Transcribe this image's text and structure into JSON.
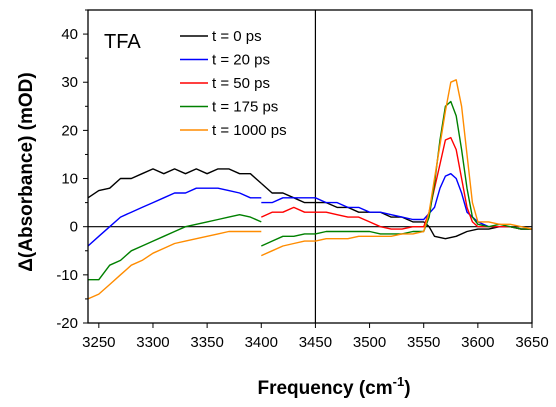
{
  "chart_data": {
    "type": "line",
    "panel_label": "TFA",
    "xlabel_main": "Frequency (cm",
    "xlabel_sup": "-1",
    "xlabel_end": ")",
    "ylabel": "Δ(Absorbance) (mOD)",
    "xlim": [
      3240,
      3650
    ],
    "ylim": [
      -20,
      45
    ],
    "xticks": [
      3250,
      3300,
      3350,
      3400,
      3450,
      3500,
      3550,
      3600,
      3650
    ],
    "yticks": [
      -20,
      -10,
      0,
      10,
      20,
      30,
      40
    ],
    "reference_lines": {
      "x": 3450,
      "y": 0
    },
    "legend_position": "top-center",
    "series": [
      {
        "name": "t = 0 ps",
        "color": "#000000",
        "segments": [
          {
            "x": [
              3240,
              3250,
              3260,
              3270,
              3280,
              3290,
              3300,
              3310,
              3320,
              3330,
              3340,
              3350,
              3360,
              3370,
              3380,
              3390,
              3400
            ],
            "y": [
              6,
              7.5,
              8,
              10,
              10,
              11,
              12,
              11,
              12,
              11,
              12,
              11,
              12,
              12,
              11,
              11,
              9
            ]
          },
          {
            "x": [
              3400,
              3410,
              3420,
              3430,
              3440,
              3450,
              3460,
              3470,
              3480,
              3490,
              3500,
              3510,
              3520,
              3530,
              3540,
              3550,
              3555,
              3560,
              3570,
              3580,
              3590,
              3600,
              3610,
              3620,
              3630,
              3640,
              3650
            ],
            "y": [
              9,
              7,
              7,
              6,
              5,
              5,
              5,
              4,
              4,
              3,
              3,
              3,
              2,
              2,
              1,
              1,
              0,
              -2,
              -2.5,
              -2,
              -1,
              -0.5,
              -0.5,
              0,
              0,
              -0.5,
              -0.5
            ]
          }
        ]
      },
      {
        "name": "t = 20 ps",
        "color": "#0000ff",
        "segments": [
          {
            "x": [
              3240,
              3250,
              3260,
              3270,
              3280,
              3290,
              3300,
              3310,
              3320,
              3330,
              3340,
              3350,
              3360,
              3370,
              3380,
              3390,
              3400
            ],
            "y": [
              -4,
              -2,
              0,
              2,
              3,
              4,
              5,
              6,
              7,
              7,
              8,
              8,
              8,
              7.5,
              7,
              6,
              6
            ]
          },
          {
            "x": [
              3400,
              3410,
              3420,
              3430,
              3440,
              3450,
              3460,
              3470,
              3480,
              3490,
              3500,
              3510,
              3520,
              3530,
              3540,
              3550,
              3560,
              3565,
              3570,
              3575,
              3580,
              3585,
              3590,
              3600,
              3610,
              3620,
              3630,
              3640,
              3650
            ],
            "y": [
              5,
              5,
              6,
              6,
              6,
              6,
              5,
              5,
              4,
              4,
              3,
              3,
              2.5,
              2,
              1.5,
              1.5,
              4,
              8,
              10.5,
              11,
              10,
              7,
              3,
              1,
              0,
              0,
              0,
              -0.5,
              -0.5
            ]
          }
        ]
      },
      {
        "name": "t = 50 ps",
        "color": "#ff0000",
        "segments": [
          {
            "x": [
              3400,
              3410,
              3420,
              3430,
              3440,
              3450,
              3460,
              3470,
              3480,
              3490,
              3500,
              3510,
              3520,
              3530,
              3540,
              3550,
              3555,
              3560,
              3565,
              3570,
              3575,
              3580,
              3585,
              3590,
              3595,
              3600,
              3610,
              3620,
              3630,
              3640,
              3650
            ],
            "y": [
              2,
              3,
              3,
              4,
              3,
              3,
              3,
              2.5,
              2,
              2,
              1,
              0,
              -0.5,
              -0.5,
              0,
              0,
              3,
              8,
              13,
              18,
              18.5,
              16,
              10,
              4,
              1,
              0,
              0,
              0,
              0,
              -0.5,
              -0.5
            ]
          }
        ]
      },
      {
        "name": "t = 175 ps",
        "color": "#008000",
        "segments": [
          {
            "x": [
              3240,
              3250,
              3260,
              3270,
              3280,
              3290,
              3300,
              3310,
              3320,
              3330,
              3340,
              3350,
              3360,
              3370,
              3380,
              3390,
              3400
            ],
            "y": [
              -11,
              -11,
              -8,
              -7,
              -5,
              -4,
              -3,
              -2,
              -1,
              0,
              0.5,
              1,
              1.5,
              2,
              2.5,
              2,
              1
            ]
          },
          {
            "x": [
              3400,
              3410,
              3420,
              3430,
              3440,
              3450,
              3460,
              3470,
              3480,
              3490,
              3500,
              3510,
              3520,
              3530,
              3540,
              3550,
              3555,
              3560,
              3565,
              3570,
              3575,
              3580,
              3585,
              3590,
              3595,
              3600,
              3610,
              3620,
              3630,
              3640,
              3650
            ],
            "y": [
              -4,
              -3,
              -2,
              -2,
              -1.5,
              -1.5,
              -1,
              -1,
              -1,
              -1,
              -1,
              -1.5,
              -1.5,
              -1.5,
              -1,
              -1,
              2,
              9,
              18,
              25,
              26,
              23,
              16,
              8,
              2,
              0.5,
              0,
              0.5,
              0,
              -0.5,
              -0.5
            ]
          }
        ]
      },
      {
        "name": "t = 1000 ps",
        "color": "#ff8c00",
        "segments": [
          {
            "x": [
              3240,
              3250,
              3260,
              3270,
              3280,
              3290,
              3300,
              3310,
              3320,
              3330,
              3340,
              3350,
              3360,
              3370,
              3380,
              3390,
              3400
            ],
            "y": [
              -15,
              -14,
              -12,
              -10,
              -8,
              -7,
              -5.5,
              -4.5,
              -3.5,
              -3,
              -2.5,
              -2,
              -1.5,
              -1,
              -1,
              -1,
              -1
            ]
          },
          {
            "x": [
              3400,
              3410,
              3420,
              3430,
              3440,
              3450,
              3460,
              3470,
              3480,
              3490,
              3500,
              3510,
              3520,
              3530,
              3540,
              3550,
              3555,
              3560,
              3565,
              3570,
              3575,
              3580,
              3585,
              3590,
              3595,
              3600,
              3610,
              3620,
              3630,
              3640,
              3650
            ],
            "y": [
              -6,
              -5,
              -4,
              -3.5,
              -3,
              -3,
              -2.5,
              -2.5,
              -2.5,
              -2,
              -2,
              -2,
              -2,
              -1.5,
              -1.5,
              -1,
              3,
              10,
              17,
              24,
              30,
              30.5,
              25,
              15,
              5,
              1,
              1,
              0.5,
              0.5,
              0,
              -0.5
            ]
          }
        ]
      }
    ]
  }
}
